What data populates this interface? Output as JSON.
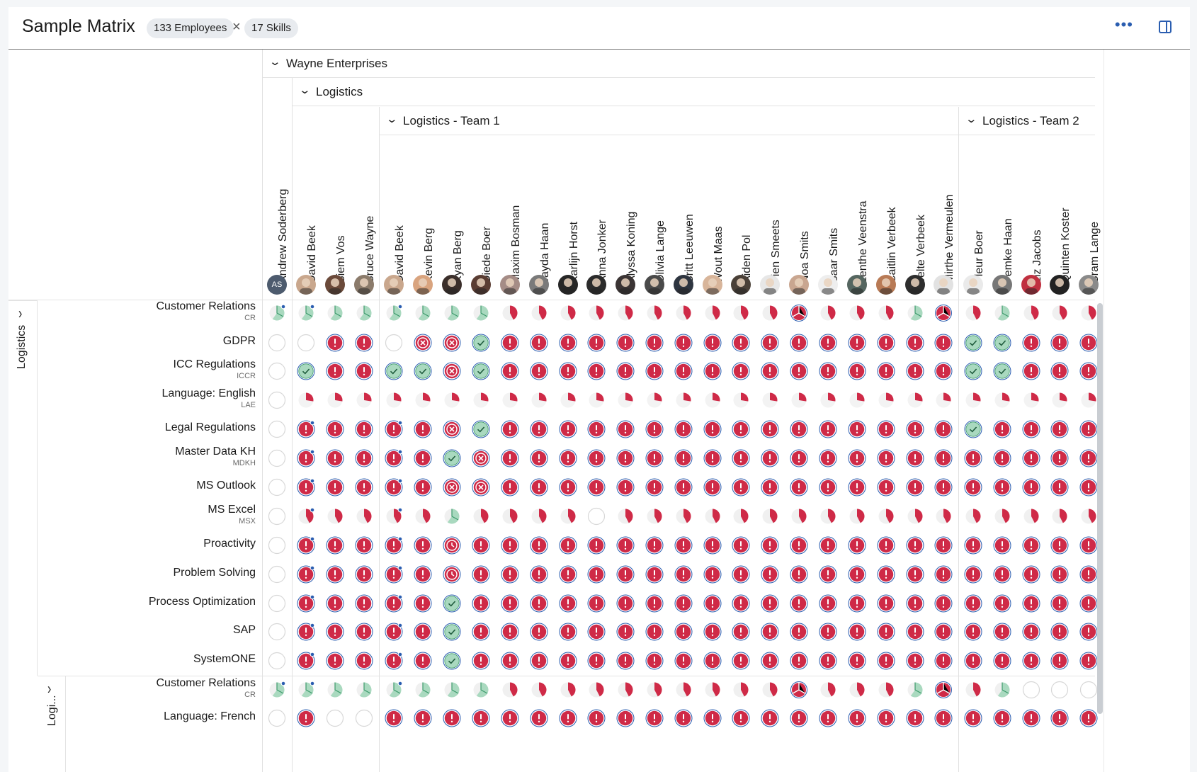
{
  "header": {
    "title": "Sample Matrix",
    "employees_badge": "133 Employees",
    "skills_badge": "17 Skills",
    "more_icon": "more-horizontal-icon",
    "panel_icon": "side-panel-icon"
  },
  "groups": {
    "org": "Wayne Enterprises",
    "dept": "Logistics",
    "team1": "Logistics - Team 1",
    "team2": "Logistics - Team 2"
  },
  "row_groups": {
    "first": "Logistics",
    "second": "Logi..."
  },
  "columns": [
    {
      "name": "Andrew Soderberg",
      "initials": "AS",
      "bg": "#4d5b6e"
    },
    {
      "name": "David Beek",
      "bg": "#c9a78d"
    },
    {
      "name": "Siem Vos",
      "bg": "#6b4a3a"
    },
    {
      "name": "Bruce Wayne",
      "bg": "#8b7b6b"
    },
    {
      "name": "David Beek",
      "bg": "#c9a78d"
    },
    {
      "name": "Kevin Berg",
      "bg": "#d9a47f"
    },
    {
      "name": "Kyan Berg",
      "bg": "#3a2e2a"
    },
    {
      "name": "Diede Boer",
      "bg": "#5a3d33"
    },
    {
      "name": "Maxim Bosman",
      "bg": "#a58c86"
    },
    {
      "name": "Jayda Haan",
      "bg": "#7a7a7a"
    },
    {
      "name": "Karlijn Horst",
      "bg": "#262626"
    },
    {
      "name": "Anna Jonker",
      "bg": "#2b2b2b"
    },
    {
      "name": "Alyssa Koning",
      "bg": "#3b3434"
    },
    {
      "name": "Olivia Lange",
      "bg": "#4a4a4a"
    },
    {
      "name": "Britt Leeuwen",
      "bg": "#2e3540"
    },
    {
      "name": "Wout Maas",
      "bg": "#d8b59a"
    },
    {
      "name": "Aiden Pol",
      "bg": "#4a4038"
    },
    {
      "name": "Fien Smeets",
      "bg": "#e7e7e7"
    },
    {
      "name": "Noa Smits",
      "bg": "#c9a690"
    },
    {
      "name": "Saar Smits",
      "bg": "#eeeeee"
    },
    {
      "name": "Lenthe Veenstra",
      "bg": "#556660"
    },
    {
      "name": "Caitlin Verbeek",
      "bg": "#b87a55"
    },
    {
      "name": "Jelte Verbeek",
      "bg": "#2e2e2e"
    },
    {
      "name": "Mirthe Vermeulen",
      "bg": "#e2e2e2"
    },
    {
      "name": "Fleur Boer",
      "bg": "#eaeaea"
    },
    {
      "name": "Femke Haan",
      "bg": "#777777"
    },
    {
      "name": "Liz Jacobs",
      "bg": "#c03040"
    },
    {
      "name": "Quinten Koster",
      "bg": "#222222"
    },
    {
      "name": "Bram Lange",
      "bg": "#8a8a8a"
    }
  ],
  "rows": [
    {
      "name": "Customer Relations",
      "abbr": "CR"
    },
    {
      "name": "GDPR",
      "abbr": ""
    },
    {
      "name": "ICC Regulations",
      "abbr": "ICCR"
    },
    {
      "name": "Language: English",
      "abbr": "LAE"
    },
    {
      "name": "Legal Regulations",
      "abbr": ""
    },
    {
      "name": "Master Data KH",
      "abbr": "MDKH"
    },
    {
      "name": "MS Outlook",
      "abbr": ""
    },
    {
      "name": "MS Excel",
      "abbr": "MSX"
    },
    {
      "name": "Proactivity",
      "abbr": ""
    },
    {
      "name": "Problem Solving",
      "abbr": ""
    },
    {
      "name": "Process Optimization",
      "abbr": ""
    },
    {
      "name": "SAP",
      "abbr": ""
    },
    {
      "name": "SystemONE",
      "abbr": ""
    },
    {
      "name": "Customer Relations",
      "abbr": "CR"
    },
    {
      "name": "Language: French",
      "abbr": ""
    }
  ],
  "legend_codes": "e=empty, p=pie(green), r=pie(red), k=check, x=cross, a=alert, c=clock, s=small-flag, t=team-pie",
  "matrix": [
    "p p p p p p p p r r r r r r r r r r t r r r p t r p r r r",
    "e e a a e x x k a a a a a a a a a a a a a a a a k k a a a",
    "e k a a k k x k a a a a a a a a a a a a a a a a k k a a a",
    "e s s s s s s s s s s s s s s s s s s s s s s s s s s s s",
    "e a a a a a x k a a a a a a a a a a a a a a a a k a a a a",
    "e a a a a a k x a a a a a a a a a a a a a a a a a a a a a",
    "e a a a a a x x a a a a a a a a a a a a a a a a a a a a a",
    "e r r r r r p r r r r e r r r r r r r r r r r r r r r r r",
    "e a a a a a c a a a a a a a a a a a a a a a a a a a a a a",
    "e a a a a a c a a a a a a a a a a a a a a a a a a a a a a",
    "e a a a a a k a a a a a a a a a a a a a a a a a a a a a a",
    "e a a a a a k a a a a a a a a a a a a a a a a a a a a a a",
    "e a a a a a k a a a a a a a a a a a a a a a a a a a a a a",
    "p p p p p p p p r r r r r r r r r r t r r r p t r p e e e",
    "e a e e a a a a a a a a a a a a a a a a a a a a a a a a a"
  ],
  "dots_rows": [
    0,
    4,
    5,
    6,
    7,
    8,
    9,
    10,
    11,
    12,
    13
  ],
  "dots_cols": [
    0,
    1,
    4
  ]
}
